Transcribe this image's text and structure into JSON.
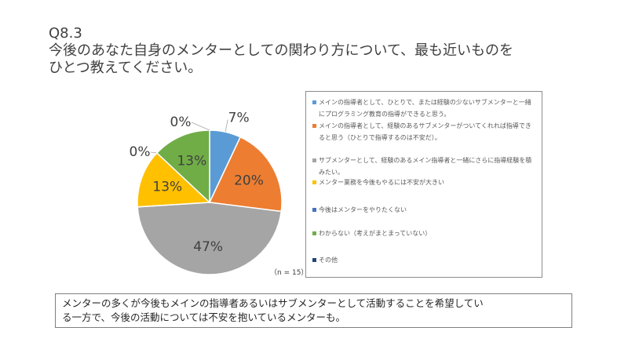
{
  "question": {
    "number": "Q8.3",
    "line1": "今後のあなた自身のメンターとしての関わり方について、最も近いものを",
    "line2": "ひとつ教えてください。"
  },
  "sample_note": "（n = 15）",
  "summary": {
    "line1": "メンターの多くが今後もメインの指導者あるいはサブメンターとして活動することを希望してい",
    "line2": "る一方で、今後の活動については不安を抱いているメンターも。"
  },
  "chart_data": {
    "type": "pie",
    "series": [
      {
        "label": "メインの指導者として、ひとりで、または経験の少ないサブメンターと一緒にプログラミング教育の指導ができると思う。",
        "value": 7,
        "data_label": "7%",
        "color": "#5B9BD5"
      },
      {
        "label": "メインの指導者として、経験のあるサブメンターがついてくれれば指導できると思う（ひとりで指導するのは不安だ）。",
        "value": 20,
        "data_label": "20%",
        "color": "#ED7D31"
      },
      {
        "label": "サブメンターとして、経験のあるメイン指導者と一緒にさらに指導経験を積みたい。",
        "value": 47,
        "data_label": "47%",
        "color": "#A5A5A5"
      },
      {
        "label": "メンター業務を今後もやるには不安が大きい",
        "value": 13,
        "data_label": "13%",
        "color": "#FFC000"
      },
      {
        "label": "今後はメンターをやりたくない",
        "value": 0,
        "data_label": "0%",
        "color": "#4472C4"
      },
      {
        "label": "わからない（考えがまとまっていない）",
        "value": 13,
        "data_label": "13%",
        "color": "#70AD47"
      },
      {
        "label": "その他",
        "value": 0,
        "data_label": "0%",
        "color": "#264478"
      }
    ],
    "legend_position": "right"
  }
}
